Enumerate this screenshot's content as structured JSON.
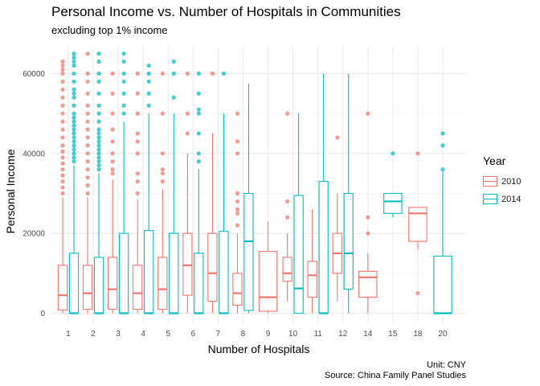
{
  "title": "Personal Income vs. Number of Hospitals in Communities",
  "subtitle": "excluding top 1% income",
  "caption_line1": "Unit: CNY",
  "caption_line2": "Source: China Family Panel Studies",
  "legend": {
    "title": "Year",
    "items": [
      {
        "label": "2010",
        "color": "#F8766D"
      },
      {
        "label": "2014",
        "color": "#00BFC4"
      }
    ]
  },
  "chart_data": {
    "type": "boxplot",
    "xlabel": "Number of Hospitals",
    "ylabel": "Personal Income",
    "categories": [
      "1",
      "2",
      "3",
      "4",
      "5",
      "6",
      "7",
      "8",
      "9",
      "10",
      "11",
      "12",
      "14",
      "15",
      "18",
      "20"
    ],
    "yticks": [
      0,
      20000,
      40000,
      60000
    ],
    "yticklabels": [
      "0",
      "20000",
      "40000",
      "60000"
    ],
    "ylim": [
      -2000,
      66000
    ],
    "grid": true,
    "legend_position": "right",
    "series": [
      {
        "name": "2010",
        "color": "#F8766D",
        "boxes": [
          {
            "x": "1",
            "min": 0,
            "q1": 800,
            "median": 4500,
            "q3": 12000,
            "max": 29000,
            "outliers": [
              30000,
              31500,
              33000,
              34500,
              36000,
              37500,
              39000,
              40500,
              42000,
              44000,
              46000,
              48000,
              50000,
              52000,
              54000,
              56000,
              58000,
              60000,
              61000,
              62000,
              63000
            ]
          },
          {
            "x": "2",
            "min": 0,
            "q1": 1000,
            "median": 5000,
            "q3": 12000,
            "max": 29000,
            "outliers": [
              30000,
              32000,
              34000,
              36000,
              38000,
              40000,
              42000,
              44000,
              46000,
              48000,
              50000,
              52000,
              55000,
              58000,
              60000,
              65000
            ]
          },
          {
            "x": "3",
            "min": 0,
            "q1": 1000,
            "median": 6000,
            "q3": 14000,
            "max": 33500,
            "outliers": [
              35000,
              36000,
              38000,
              40000,
              43000,
              46000,
              50000,
              55000,
              60000
            ]
          },
          {
            "x": "4",
            "min": 0,
            "q1": 1000,
            "median": 5000,
            "q3": 12000,
            "max": 28500,
            "outliers": [
              30000,
              33000,
              35000,
              40000,
              43000,
              45000,
              50000,
              55000,
              60000
            ]
          },
          {
            "x": "5",
            "min": 0,
            "q1": 1000,
            "median": 6000,
            "q3": 14000,
            "max": 31000,
            "outliers": [
              33000,
              35000,
              36000,
              40000,
              50000,
              60000
            ]
          },
          {
            "x": "6",
            "min": 0,
            "q1": 4500,
            "median": 12000,
            "q3": 20000,
            "max": 40000,
            "outliers": [
              45000,
              50000,
              60000
            ]
          },
          {
            "x": "7",
            "min": 0,
            "q1": 3000,
            "median": 10000,
            "q3": 20000,
            "max": 45000,
            "outliers": [
              60000
            ]
          },
          {
            "x": "8",
            "min": 0,
            "q1": 2000,
            "median": 5000,
            "q3": 10000,
            "max": 20000,
            "outliers": [
              22000,
              25000,
              26000,
              28000,
              30000,
              40000,
              43000,
              50000
            ]
          },
          {
            "x": "9",
            "min": 0,
            "q1": 500,
            "median": 4000,
            "q3": 15500,
            "max": 23000,
            "outliers": []
          },
          {
            "x": "10",
            "min": 3000,
            "q1": 8000,
            "median": 10000,
            "q3": 14000,
            "max": 20000,
            "outliers": [
              24000,
              28000,
              50000
            ]
          },
          {
            "x": "11",
            "min": 0,
            "q1": 4000,
            "median": 9500,
            "q3": 13000,
            "max": 26000,
            "outliers": []
          },
          {
            "x": "12",
            "min": 3000,
            "q1": 10000,
            "median": 15000,
            "q3": 20000,
            "max": 30000,
            "outliers": [
              44000
            ]
          },
          {
            "x": "14",
            "min": 0,
            "q1": 4000,
            "median": 9000,
            "q3": 10500,
            "max": 15000,
            "outliers": [
              20000,
              24000,
              50000
            ]
          },
          {
            "x": "18",
            "min": 16000,
            "q1": 18000,
            "median": 25000,
            "q3": 26500,
            "max": 26500,
            "outliers": [
              5000,
              40000
            ]
          }
        ]
      },
      {
        "name": "2014",
        "color": "#00BFC4",
        "boxes": [
          {
            "x": "1",
            "min": 0,
            "q1": 0,
            "median": 0,
            "q3": 15000,
            "max": 37000,
            "outliers": [
              38000,
              39000,
              40000,
              41000,
              42000,
              43000,
              44000,
              45000,
              46000,
              47000,
              48000,
              49000,
              50000,
              52000,
              54000,
              55000,
              56000,
              58000,
              60000,
              62000,
              63000,
              64000,
              65000
            ]
          },
          {
            "x": "2",
            "min": 0,
            "q1": 0,
            "median": 0,
            "q3": 14000,
            "max": 35000,
            "outliers": [
              36000,
              37000,
              38000,
              39000,
              40000,
              41000,
              42000,
              43000,
              44000,
              45000,
              46000,
              48000,
              50000,
              52000,
              55000,
              58000,
              60000,
              63000,
              65000
            ]
          },
          {
            "x": "3",
            "min": 0,
            "q1": 0,
            "median": 0,
            "q3": 20000,
            "max": 48000,
            "outliers": [
              50000,
              52000,
              55000,
              58000,
              60000,
              63000,
              65000
            ]
          },
          {
            "x": "4",
            "min": 0,
            "q1": 0,
            "median": 0,
            "q3": 20700,
            "max": 50000,
            "outliers": [
              52000,
              55000,
              58000,
              60000,
              62000
            ]
          },
          {
            "x": "5",
            "min": 0,
            "q1": 0,
            "median": 0,
            "q3": 20000,
            "max": 50000,
            "outliers": [
              54000,
              60000,
              63000
            ]
          },
          {
            "x": "6",
            "min": 0,
            "q1": 0,
            "median": 0,
            "q3": 15000,
            "max": 36000,
            "outliers": [
              38000,
              40000,
              45000,
              50000,
              51000,
              55000,
              60000
            ]
          },
          {
            "x": "7",
            "min": 0,
            "q1": 0,
            "median": 0,
            "q3": 20500,
            "max": 50000,
            "outliers": [
              60000
            ]
          },
          {
            "x": "8",
            "min": 0,
            "q1": 700,
            "median": 18000,
            "q3": 30000,
            "max": 57500,
            "outliers": []
          },
          {
            "x": "10",
            "min": 0,
            "q1": 0,
            "median": 6200,
            "q3": 29500,
            "max": 50000,
            "outliers": []
          },
          {
            "x": "11",
            "min": 0,
            "q1": 0,
            "median": 0,
            "q3": 33000,
            "max": 60000,
            "outliers": []
          },
          {
            "x": "12",
            "min": 0,
            "q1": 6000,
            "median": 15000,
            "q3": 30000,
            "max": 60000,
            "outliers": []
          },
          {
            "x": "15",
            "min": 24000,
            "q1": 25000,
            "median": 28000,
            "q3": 30000,
            "max": 30000,
            "outliers": [
              40000
            ]
          },
          {
            "x": "20",
            "min": 0,
            "q1": 0,
            "median": 0,
            "q3": 14300,
            "max": 35500,
            "outliers": [
              36000,
              42000,
              45000
            ]
          }
        ]
      }
    ]
  }
}
